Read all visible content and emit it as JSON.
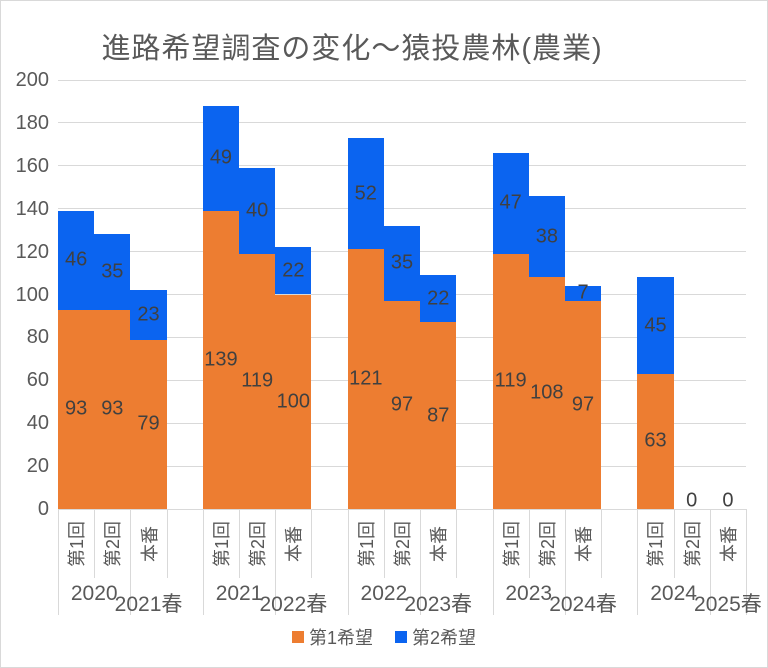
{
  "chart_data": {
    "type": "bar",
    "stacked": true,
    "title": "進路希望調査の変化～猿投農林(農業)",
    "legend_position": "bottom",
    "grid": true,
    "y_axis": {
      "min": 0,
      "max": 200,
      "step": 20,
      "ticks": [
        0,
        20,
        40,
        60,
        80,
        100,
        120,
        140,
        160,
        180,
        200
      ]
    },
    "series": [
      {
        "name": "第1希望",
        "color": "#ED7D31"
      },
      {
        "name": "第2希望",
        "color": "#0B64F0"
      }
    ],
    "sub_categories": [
      "第1回",
      "第2回",
      "本番"
    ],
    "groups": [
      {
        "labels": [
          "2020",
          "2021春"
        ],
        "bars": [
          {
            "cat": "第1回",
            "first": 93,
            "second": 46
          },
          {
            "cat": "第2回",
            "first": 93,
            "second": 35
          },
          {
            "cat": "本番",
            "first": 79,
            "second": 23
          }
        ]
      },
      {
        "labels": [
          "2021",
          "2022春"
        ],
        "bars": [
          {
            "cat": "第1回",
            "first": 139,
            "second": 49
          },
          {
            "cat": "第2回",
            "first": 119,
            "second": 40
          },
          {
            "cat": "本番",
            "first": 100,
            "second": 22
          }
        ]
      },
      {
        "labels": [
          "2022",
          "2023春"
        ],
        "bars": [
          {
            "cat": "第1回",
            "first": 121,
            "second": 52
          },
          {
            "cat": "第2回",
            "first": 97,
            "second": 35
          },
          {
            "cat": "本番",
            "first": 87,
            "second": 22
          }
        ]
      },
      {
        "labels": [
          "2023",
          "2024春"
        ],
        "bars": [
          {
            "cat": "第1回",
            "first": 119,
            "second": 47
          },
          {
            "cat": "第2回",
            "first": 108,
            "second": 38
          },
          {
            "cat": "本番",
            "first": 97,
            "second": 7
          }
        ]
      },
      {
        "labels": [
          "2024",
          "2025春"
        ],
        "bars": [
          {
            "cat": "第1回",
            "first": 63,
            "second": 45
          },
          {
            "cat": "第2回",
            "first": 0,
            "second": 0
          },
          {
            "cat": "本番",
            "first": 0,
            "second": 0
          }
        ]
      }
    ],
    "colors": {
      "title_text": "#595959",
      "axis_text": "#595959",
      "data_label_text": "#404040",
      "gridline": "#D9D9D9"
    }
  }
}
